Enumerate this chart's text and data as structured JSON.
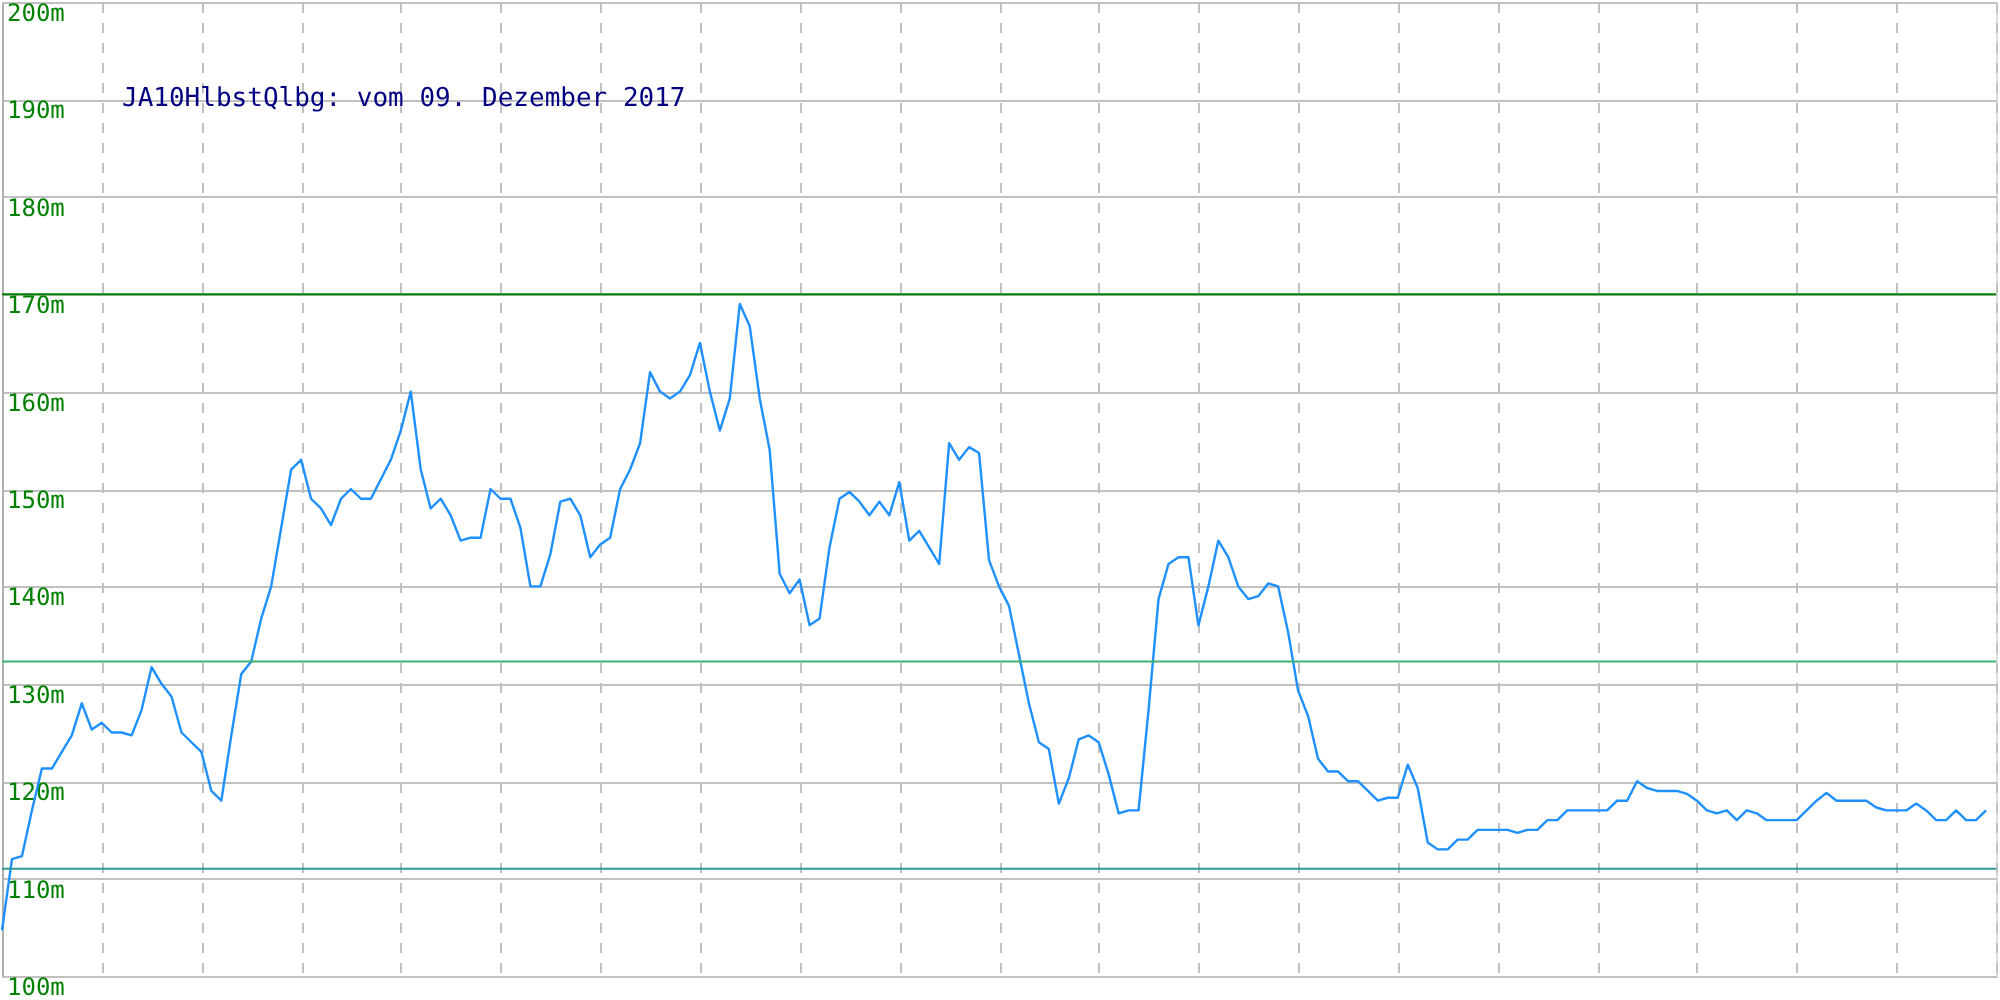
{
  "chart_data": {
    "type": "line",
    "title": "JA10HlbstQlbg: vom 09. Dezember 2017",
    "categories": [
      null,
      null,
      null,
      null,
      null,
      null,
      null,
      null,
      null,
      null,
      null,
      null,
      null,
      null,
      null,
      null,
      null,
      null,
      null,
      null,
      null,
      null,
      null,
      null,
      null,
      null,
      null,
      null,
      null,
      null,
      null,
      null,
      null,
      null,
      null,
      null,
      null,
      null,
      null,
      null,
      null,
      null,
      null,
      null,
      null,
      null,
      null,
      null,
      null,
      null,
      null,
      null,
      null,
      null,
      null,
      null,
      null,
      null,
      null,
      null,
      null,
      null,
      null,
      null,
      null,
      null,
      null,
      null,
      null,
      null,
      null,
      null,
      null,
      null,
      null,
      null,
      null,
      null,
      null,
      null,
      null,
      null,
      null,
      null,
      null,
      null,
      null,
      null,
      null,
      null,
      null,
      null,
      null,
      null,
      null,
      null,
      null,
      null,
      null,
      null,
      null,
      null,
      null,
      null,
      null,
      null,
      null,
      null,
      null,
      null,
      null,
      null,
      null,
      null,
      null,
      null,
      null,
      null,
      null,
      null,
      null,
      null,
      null,
      null,
      null,
      null,
      null,
      null,
      null,
      null,
      null,
      null,
      null,
      null,
      null,
      null,
      null,
      null,
      null,
      null,
      null,
      null,
      null,
      null,
      null,
      null,
      null,
      null,
      null,
      null,
      null,
      null,
      null,
      null,
      null,
      null,
      null,
      null,
      null,
      null,
      null,
      null,
      null,
      null,
      null,
      null,
      null,
      null,
      null,
      null,
      null,
      null,
      null,
      null,
      null,
      null,
      null,
      null,
      null,
      null,
      null,
      null,
      null,
      null,
      null,
      null,
      null,
      null,
      null,
      null,
      null,
      null,
      null,
      null,
      null,
      null,
      null,
      null,
      null,
      null
    ],
    "series": [
      {
        "color": "#1e90ff",
        "values": [
          104.7,
          112,
          112.3,
          117,
          121.3,
          121.3,
          123,
          124.7,
          128,
          125.3,
          126,
          125,
          125,
          124.7,
          127.3,
          131.7,
          130,
          128.7,
          125,
          124,
          123,
          119,
          118,
          124.7,
          131,
          132.3,
          136.7,
          140,
          146,
          152,
          153,
          149,
          148,
          146.3,
          149,
          150,
          149,
          149,
          151,
          153,
          156,
          160,
          152,
          148,
          149,
          147.3,
          144.7,
          145,
          145,
          150,
          149,
          149,
          146,
          140,
          140,
          143.3,
          148.7,
          149,
          147.3,
          143,
          144.3,
          145,
          150,
          152,
          154.7,
          162,
          160,
          159.3,
          160,
          161.7,
          165,
          160,
          156,
          159.3,
          169,
          166.7,
          159.3,
          154,
          141.3,
          139.3,
          140.7,
          136,
          136.7,
          144,
          149,
          149.7,
          148.7,
          147.3,
          148.7,
          147.3,
          150.7,
          144.7,
          145.7,
          144,
          142.3,
          154.7,
          153,
          154.3,
          153.7,
          142.7,
          140,
          138,
          133,
          128,
          124,
          123.3,
          117.7,
          120.3,
          124.3,
          124.7,
          124,
          120.7,
          116.7,
          117,
          117,
          127.3,
          138.7,
          142.3,
          143,
          143,
          136,
          140,
          144.7,
          143,
          140,
          138.7,
          139,
          140.3,
          140,
          135.3,
          129.3,
          126.7,
          122.3,
          121,
          121,
          120,
          120,
          119,
          118,
          118.3,
          118.3,
          121.7,
          119.3,
          113.7,
          113,
          113,
          114,
          114,
          115,
          115,
          115,
          115,
          114.7,
          115,
          115,
          116,
          116,
          117,
          117,
          117,
          117,
          117,
          118,
          118,
          120,
          119.3,
          119,
          119,
          119,
          118.7,
          118,
          117,
          116.7,
          117,
          116,
          117,
          116.7,
          116,
          116,
          116,
          116,
          117,
          118,
          118.8,
          118,
          118,
          118,
          118,
          117.3,
          117,
          117,
          117,
          117.7,
          117,
          116,
          116,
          117,
          116,
          116,
          117
        ]
      }
    ],
    "ylim": [
      100,
      200
    ],
    "yticks": [
      {
        "value": 100,
        "label": "100m"
      },
      {
        "value": 110,
        "label": "110m"
      },
      {
        "value": 120,
        "label": "120m"
      },
      {
        "value": 130,
        "label": "130m"
      },
      {
        "value": 140,
        "label": "140m"
      },
      {
        "value": 150,
        "label": "150m"
      },
      {
        "value": 160,
        "label": "160m"
      },
      {
        "value": 170,
        "label": "170m"
      },
      {
        "value": 180,
        "label": "180m"
      },
      {
        "value": 190,
        "label": "190m"
      },
      {
        "value": 200,
        "label": "200m"
      }
    ],
    "ref_lines": [
      {
        "axis": "y",
        "value": 170,
        "color": "#008000"
      },
      {
        "axis": "y",
        "value": 132.3,
        "color": "#3cb371"
      },
      {
        "axis": "y",
        "value": 111,
        "color": "#339999"
      }
    ],
    "grid": true,
    "marker": "none",
    "line_style": "solid",
    "tick_labels": "y"
  }
}
